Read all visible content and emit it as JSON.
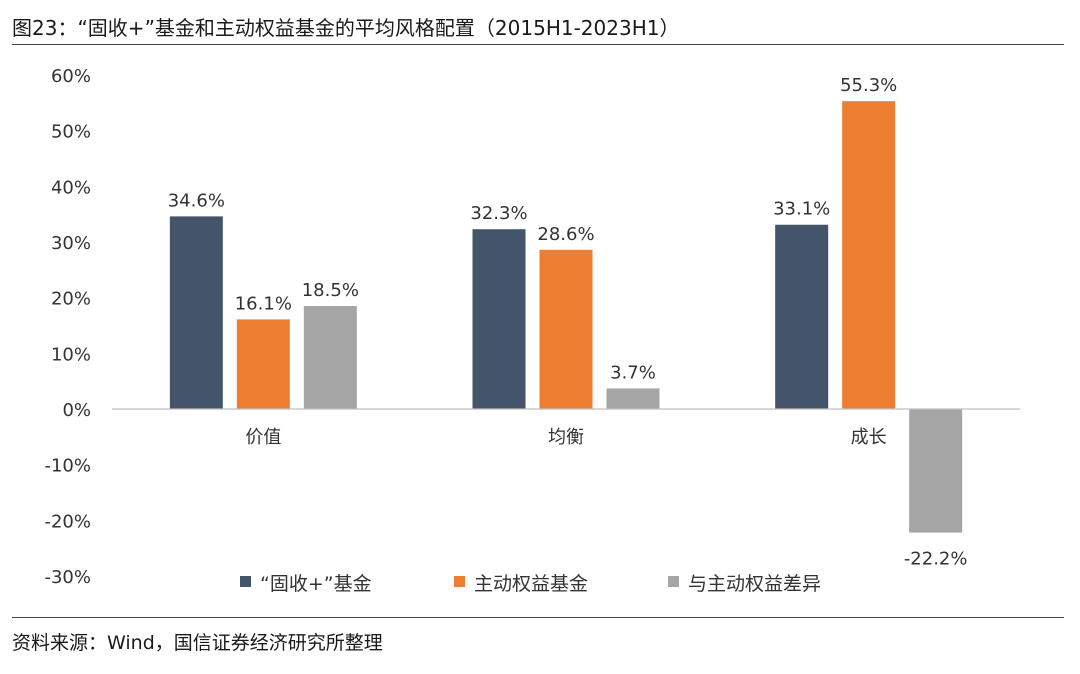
{
  "caption": "图23：“固收+”基金和主动权益基金的平均风格配置（2015H1-2023H1）",
  "source": "资料来源：Wind，国信证券经济研究所整理",
  "chart_data": {
    "type": "bar",
    "categories": [
      "价值",
      "均衡",
      "成长"
    ],
    "series": [
      {
        "name": "“固收+”基金",
        "color": "#44546a",
        "values": [
          34.6,
          32.3,
          33.1
        ],
        "labels": [
          "34.6%",
          "32.3%",
          "33.1%"
        ]
      },
      {
        "name": "主动权益基金",
        "color": "#ed7d31",
        "values": [
          16.1,
          28.6,
          55.3
        ],
        "labels": [
          "16.1%",
          "28.6%",
          "55.3%"
        ]
      },
      {
        "name": "与主动权益差异",
        "color": "#a5a5a5",
        "values": [
          18.5,
          3.7,
          -22.2
        ],
        "labels": [
          "18.5%",
          "3.7%",
          "-22.2%"
        ]
      }
    ],
    "ylim": [
      -30,
      60
    ],
    "yticks": [
      "60%",
      "50%",
      "40%",
      "30%",
      "20%",
      "10%",
      "0%",
      "-10%",
      "-20%",
      "-30%"
    ],
    "ytick_values": [
      60,
      50,
      40,
      30,
      20,
      10,
      0,
      -10,
      -20,
      -30
    ],
    "grid": false,
    "legend_position": "bottom"
  }
}
